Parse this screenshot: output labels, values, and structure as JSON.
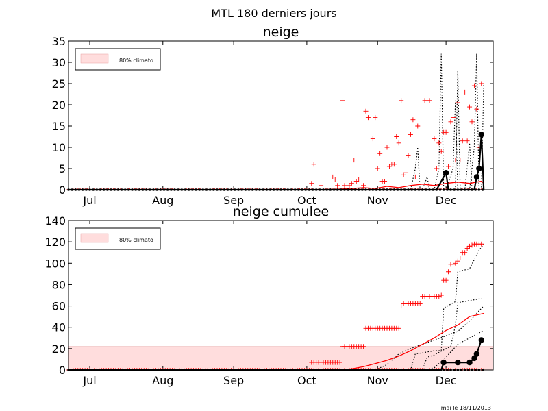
{
  "figure_title": "MTL 180 derniers jours",
  "footer_note": "mai le 18/11/2013",
  "colors": {
    "red": "#ff0000",
    "black": "#000000",
    "band": "#ffdddd"
  },
  "chart_data": [
    {
      "type": "line",
      "title": "neige",
      "xlabel": "",
      "ylabel": "",
      "xlim": [
        0,
        180
      ],
      "ylim": [
        0,
        35
      ],
      "yticks": [
        "0",
        "5",
        "10",
        "15",
        "20",
        "25",
        "30",
        "35"
      ],
      "ytick_values": [
        0,
        5,
        10,
        15,
        20,
        25,
        30,
        35
      ],
      "xtick_labels": [
        "Jul",
        "Aug",
        "Sep",
        "Oct",
        "Nov",
        "Dec"
      ],
      "xtick_days": [
        9,
        40,
        70,
        101,
        131,
        160
      ],
      "legend": {
        "label": "80% climato",
        "placement": "top-left"
      },
      "climato_band": null,
      "observed": {
        "style": "black-dots-markers",
        "points": [
          [
            0,
            0
          ],
          [
            150,
            0
          ],
          [
            156,
            0
          ],
          [
            160,
            4
          ],
          [
            161,
            0
          ],
          [
            172,
            0
          ],
          [
            173,
            3
          ],
          [
            174,
            5
          ],
          [
            175,
            13
          ],
          [
            176,
            0
          ]
        ]
      },
      "mean_line": {
        "style": "red-line",
        "points": [
          [
            100,
            0
          ],
          [
            110,
            0
          ],
          [
            120,
            0.3
          ],
          [
            125,
            0.5
          ],
          [
            130,
            0.3
          ],
          [
            135,
            0.8
          ],
          [
            140,
            0.5
          ],
          [
            145,
            1
          ],
          [
            150,
            1.3
          ],
          [
            155,
            1
          ],
          [
            160,
            1.5
          ],
          [
            165,
            1.8
          ],
          [
            170,
            1.5
          ],
          [
            175,
            2
          ],
          [
            176,
            1.5
          ]
        ]
      },
      "dotted_series": [
        {
          "points": [
            [
              130,
              0
            ],
            [
              145,
              0
            ],
            [
              147,
              5
            ],
            [
              148,
              10
            ],
            [
              149,
              0
            ],
            [
              155,
              0
            ],
            [
              157,
              5
            ],
            [
              158,
              32
            ],
            [
              159,
              0
            ],
            [
              164,
              0
            ],
            [
              165,
              28
            ],
            [
              166,
              0
            ],
            [
              170,
              0
            ],
            [
              172,
              10
            ],
            [
              173,
              32
            ],
            [
              174,
              0
            ],
            [
              176,
              0
            ]
          ]
        },
        {
          "points": [
            [
              140,
              0
            ],
            [
              150,
              0
            ],
            [
              152,
              3
            ],
            [
              153,
              0
            ],
            [
              160,
              0
            ],
            [
              163,
              5
            ],
            [
              164,
              21
            ],
            [
              165,
              0
            ],
            [
              168,
              0
            ],
            [
              170,
              11
            ],
            [
              171,
              0
            ],
            [
              175,
              0
            ],
            [
              176,
              25
            ]
          ]
        }
      ],
      "plus_points": [
        [
          103,
          1.5
        ],
        [
          104,
          6
        ],
        [
          107,
          1
        ],
        [
          112,
          3
        ],
        [
          113,
          2.5
        ],
        [
          114,
          1
        ],
        [
          116,
          21
        ],
        [
          117,
          1
        ],
        [
          119,
          1
        ],
        [
          120,
          1.5
        ],
        [
          121,
          7
        ],
        [
          122,
          2
        ],
        [
          123,
          2.5
        ],
        [
          125,
          1
        ],
        [
          126,
          18.5
        ],
        [
          127,
          17
        ],
        [
          129,
          12
        ],
        [
          130,
          17
        ],
        [
          131,
          5
        ],
        [
          132,
          8.5
        ],
        [
          133,
          2
        ],
        [
          134,
          2
        ],
        [
          135,
          10
        ],
        [
          136,
          5.5
        ],
        [
          137,
          6
        ],
        [
          138,
          6
        ],
        [
          139,
          12.5
        ],
        [
          140,
          11
        ],
        [
          141,
          21
        ],
        [
          142,
          3.5
        ],
        [
          143,
          4
        ],
        [
          144,
          8
        ],
        [
          145,
          13
        ],
        [
          146,
          16.5
        ],
        [
          147,
          3
        ],
        [
          148,
          15
        ],
        [
          151,
          21
        ],
        [
          152,
          21
        ],
        [
          153,
          21
        ],
        [
          155,
          12
        ],
        [
          156,
          5
        ],
        [
          157,
          11
        ],
        [
          158,
          9
        ],
        [
          159,
          13.5
        ],
        [
          160,
          13.5
        ],
        [
          161,
          5.5
        ],
        [
          162,
          16
        ],
        [
          163,
          17
        ],
        [
          164,
          7
        ],
        [
          165,
          20.5
        ],
        [
          166,
          7
        ],
        [
          167,
          11.5
        ],
        [
          168,
          23
        ],
        [
          169,
          11.5
        ],
        [
          170,
          19.5
        ],
        [
          171,
          16
        ],
        [
          172,
          24.5
        ],
        [
          173,
          19
        ],
        [
          174,
          10
        ],
        [
          175,
          25
        ]
      ]
    },
    {
      "type": "line",
      "title": "neige cumulee",
      "xlabel": "",
      "ylabel": "",
      "xlim": [
        0,
        180
      ],
      "ylim": [
        0,
        140
      ],
      "yticks": [
        "0",
        "20",
        "40",
        "60",
        "80",
        "100",
        "120",
        "140"
      ],
      "ytick_values": [
        0,
        20,
        40,
        60,
        80,
        100,
        120,
        140
      ],
      "xtick_labels": [
        "Jul",
        "Aug",
        "Sep",
        "Oct",
        "Nov",
        "Dec"
      ],
      "xtick_days": [
        9,
        40,
        70,
        101,
        131,
        160
      ],
      "legend": {
        "label": "80% climato",
        "placement": "top-left"
      },
      "climato_band": {
        "low": 0,
        "high": 22
      },
      "observed": {
        "style": "black-dots-markers",
        "points": [
          [
            0,
            0
          ],
          [
            158,
            0
          ],
          [
            159,
            7
          ],
          [
            165,
            7
          ],
          [
            170,
            7
          ],
          [
            172,
            11
          ],
          [
            173,
            15
          ],
          [
            175,
            28
          ]
        ]
      },
      "mean_line": {
        "style": "red-line",
        "points": [
          [
            110,
            0
          ],
          [
            120,
            1
          ],
          [
            125,
            3
          ],
          [
            130,
            6
          ],
          [
            135,
            9
          ],
          [
            140,
            13
          ],
          [
            145,
            18
          ],
          [
            150,
            24
          ],
          [
            155,
            30
          ],
          [
            160,
            37
          ],
          [
            165,
            42
          ],
          [
            170,
            50
          ],
          [
            176,
            53
          ]
        ]
      },
      "dotted_series": [
        {
          "points": [
            [
              140,
              0
            ],
            [
              145,
              0
            ],
            [
              147,
              15
            ],
            [
              150,
              16
            ],
            [
              155,
              18
            ],
            [
              158,
              18
            ],
            [
              159,
              58
            ],
            [
              164,
              64
            ],
            [
              165,
              92
            ],
            [
              170,
              95
            ],
            [
              174,
              112
            ],
            [
              176,
              118
            ]
          ]
        },
        {
          "points": [
            [
              140,
              0
            ],
            [
              150,
              0
            ],
            [
              152,
              12
            ],
            [
              155,
              14
            ],
            [
              160,
              20
            ],
            [
              162,
              22
            ],
            [
              164,
              42
            ],
            [
              165,
              63
            ],
            [
              170,
              65
            ],
            [
              175,
              67
            ]
          ]
        },
        {
          "points": [
            [
              130,
              0
            ],
            [
              135,
              5
            ],
            [
              140,
              15
            ],
            [
              145,
              20
            ],
            [
              150,
              24
            ],
            [
              155,
              28
            ],
            [
              160,
              32
            ],
            [
              165,
              36
            ],
            [
              170,
              46
            ],
            [
              176,
              60
            ]
          ]
        },
        {
          "points": [
            [
              140,
              0
            ],
            [
              150,
              0
            ],
            [
              155,
              2
            ],
            [
              160,
              12
            ],
            [
              165,
              24
            ],
            [
              170,
              30
            ],
            [
              176,
              37
            ]
          ]
        }
      ],
      "plus_points": [
        [
          103,
          7
        ],
        [
          104,
          7
        ],
        [
          105,
          7
        ],
        [
          106,
          7
        ],
        [
          107,
          7
        ],
        [
          108,
          7
        ],
        [
          109,
          7
        ],
        [
          110,
          7
        ],
        [
          111,
          7
        ],
        [
          112,
          7
        ],
        [
          113,
          7
        ],
        [
          114,
          7
        ],
        [
          115,
          7
        ],
        [
          116,
          22
        ],
        [
          117,
          22
        ],
        [
          118,
          22
        ],
        [
          119,
          22
        ],
        [
          120,
          22
        ],
        [
          121,
          22
        ],
        [
          122,
          22
        ],
        [
          123,
          22
        ],
        [
          124,
          22
        ],
        [
          125,
          22
        ],
        [
          126,
          39
        ],
        [
          127,
          39
        ],
        [
          128,
          39
        ],
        [
          129,
          39
        ],
        [
          130,
          39
        ],
        [
          131,
          39
        ],
        [
          132,
          39
        ],
        [
          133,
          39
        ],
        [
          134,
          39
        ],
        [
          135,
          39
        ],
        [
          136,
          39
        ],
        [
          137,
          39
        ],
        [
          138,
          39
        ],
        [
          139,
          39
        ],
        [
          140,
          39
        ],
        [
          141,
          60
        ],
        [
          142,
          62
        ],
        [
          143,
          62
        ],
        [
          144,
          62
        ],
        [
          145,
          62
        ],
        [
          146,
          62
        ],
        [
          147,
          62
        ],
        [
          148,
          62
        ],
        [
          149,
          62
        ],
        [
          150,
          69
        ],
        [
          151,
          69
        ],
        [
          152,
          69
        ],
        [
          153,
          69
        ],
        [
          154,
          69
        ],
        [
          155,
          69
        ],
        [
          156,
          69
        ],
        [
          157,
          69
        ],
        [
          158,
          70
        ],
        [
          159,
          84
        ],
        [
          160,
          84
        ],
        [
          161,
          92
        ],
        [
          162,
          99
        ],
        [
          163,
          99
        ],
        [
          164,
          100
        ],
        [
          165,
          102
        ],
        [
          166,
          105
        ],
        [
          167,
          110
        ],
        [
          168,
          110
        ],
        [
          169,
          114
        ],
        [
          170,
          116
        ],
        [
          171,
          117
        ],
        [
          172,
          118
        ],
        [
          173,
          118
        ],
        [
          174,
          118
        ],
        [
          175,
          118
        ]
      ]
    }
  ]
}
